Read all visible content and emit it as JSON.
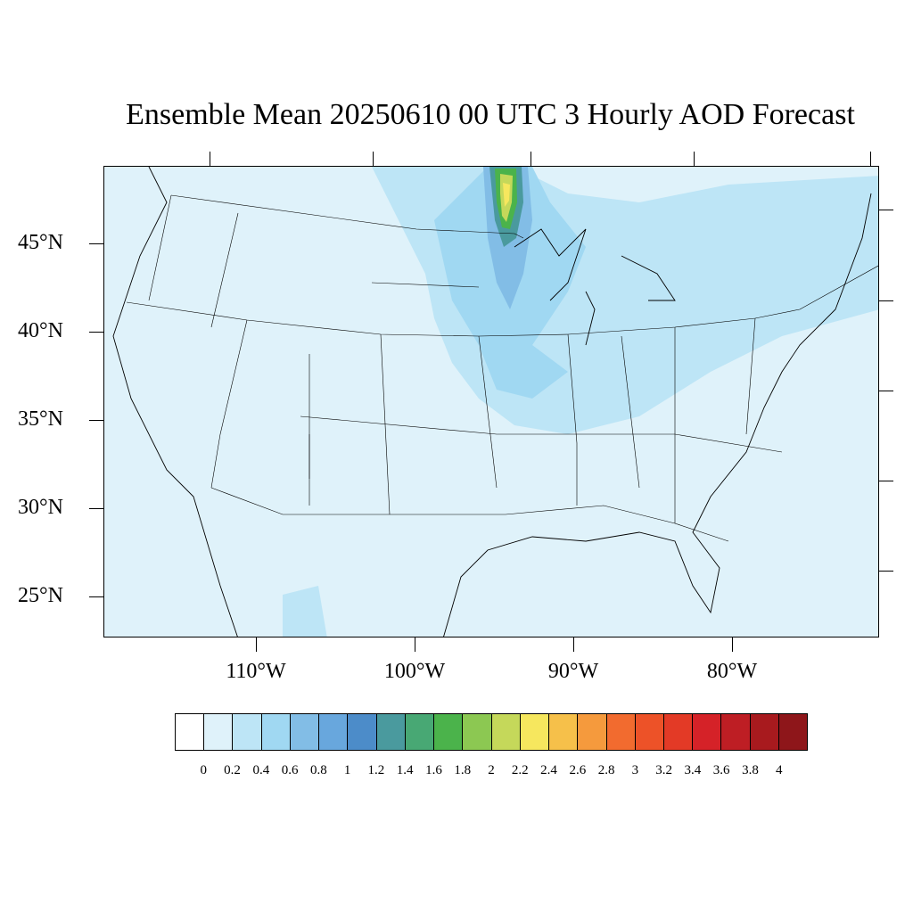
{
  "title": "Ensemble Mean 20250610 00 UTC 3 Hourly AOD Forecast",
  "lat_labels": [
    "45°N",
    "40°N",
    "35°N",
    "30°N",
    "25°N"
  ],
  "lon_labels": [
    "110°W",
    "100°W",
    "90°W",
    "80°W"
  ],
  "colorbar": {
    "labels": [
      "0",
      "0.2",
      "0.4",
      "0.6",
      "0.8",
      "1",
      "1.2",
      "1.4",
      "1.6",
      "1.8",
      "2",
      "2.2",
      "2.4",
      "2.6",
      "2.8",
      "3",
      "3.2",
      "3.4",
      "3.6",
      "3.8",
      "4"
    ],
    "colors": [
      "#ffffff",
      "#dff2fa",
      "#bde5f6",
      "#a0d8f2",
      "#82bde6",
      "#68a7dd",
      "#4c8cc9",
      "#4a9a9e",
      "#48a874",
      "#4bb34b",
      "#8cc852",
      "#c5d85a",
      "#f6e75e",
      "#f6c04a",
      "#f59a3d",
      "#f26b2f",
      "#ed5228",
      "#e33a26",
      "#d52228",
      "#be1e24",
      "#a81a1e",
      "#8e161a"
    ]
  },
  "colors": {
    "background_field": "#dff2fa",
    "plume_light": "#bde5f6",
    "plume_mid": "#a0d8f2",
    "plume_core": "#68a7dd",
    "plume_peak": "#f6e75e"
  }
}
